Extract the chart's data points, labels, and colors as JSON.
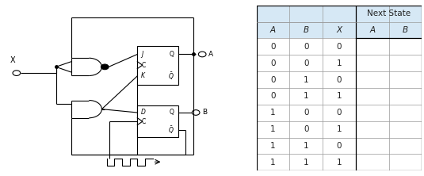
{
  "col_headers": [
    "A",
    "B",
    "X",
    "A",
    "B"
  ],
  "group_header": "Next State",
  "rows": [
    [
      "0",
      "0",
      "0",
      "",
      ""
    ],
    [
      "0",
      "0",
      "1",
      "",
      ""
    ],
    [
      "0",
      "1",
      "0",
      "",
      ""
    ],
    [
      "0",
      "1",
      "1",
      "",
      ""
    ],
    [
      "1",
      "0",
      "0",
      "",
      ""
    ],
    [
      "1",
      "0",
      "1",
      "",
      ""
    ],
    [
      "1",
      "1",
      "0",
      "",
      ""
    ],
    [
      "1",
      "1",
      "1",
      "",
      ""
    ]
  ],
  "header_bg": "#d6e8f5",
  "cell_bg": "#ffffff",
  "border_color": "#999999",
  "text_color": "#222222",
  "font_size": 7.5,
  "header_font_size": 7.5,
  "group_font_size": 7.5,
  "fig_bg": "#ffffff",
  "lw": 0.7,
  "gate_lw": 0.8
}
